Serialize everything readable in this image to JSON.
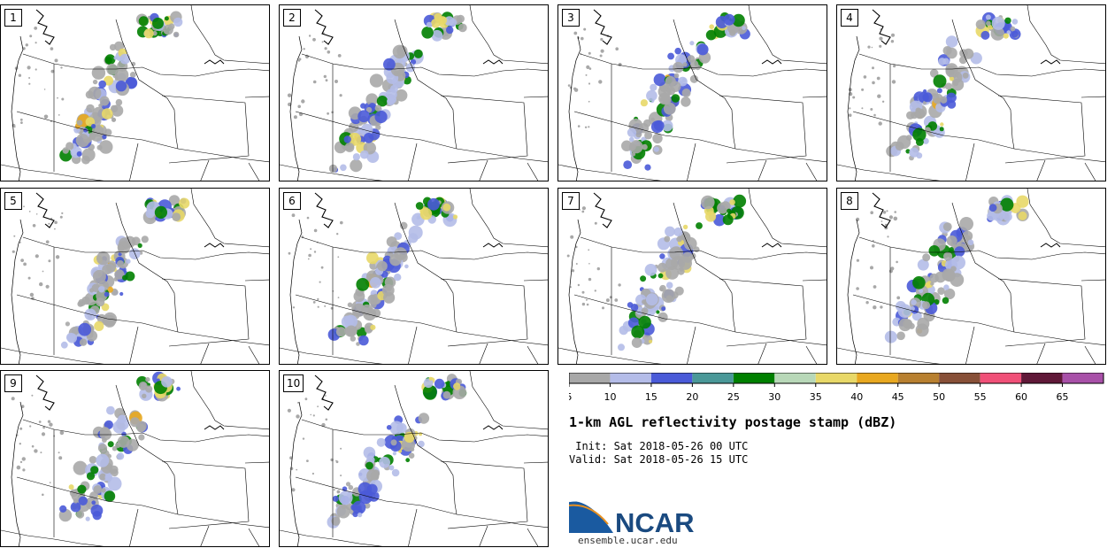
{
  "panels": [
    {
      "label": "1"
    },
    {
      "label": "2"
    },
    {
      "label": "3"
    },
    {
      "label": "4"
    },
    {
      "label": "5"
    },
    {
      "label": "6"
    },
    {
      "label": "7"
    },
    {
      "label": "8"
    },
    {
      "label": "9"
    },
    {
      "label": "10"
    }
  ],
  "colorbar": {
    "ticks": [
      "5",
      "10",
      "15",
      "20",
      "25",
      "30",
      "35",
      "40",
      "45",
      "50",
      "55",
      "60",
      "65"
    ],
    "colors": [
      "#a8a8a8",
      "#b4bce8",
      "#4a5ad8",
      "#4a9898",
      "#008000",
      "#b8d8b8",
      "#e8d868",
      "#e8a820",
      "#b88030",
      "#885038",
      "#f05078",
      "#601838",
      "#a850a8"
    ]
  },
  "title": "1-km AGL reflectivity postage stamp (dBZ)",
  "init": " Init: Sat 2018-05-26 00 UTC",
  "valid": "Valid: Sat 2018-05-26 15 UTC",
  "logo": {
    "text": "NCAR",
    "site": "ensemble.ucar.edu"
  }
}
